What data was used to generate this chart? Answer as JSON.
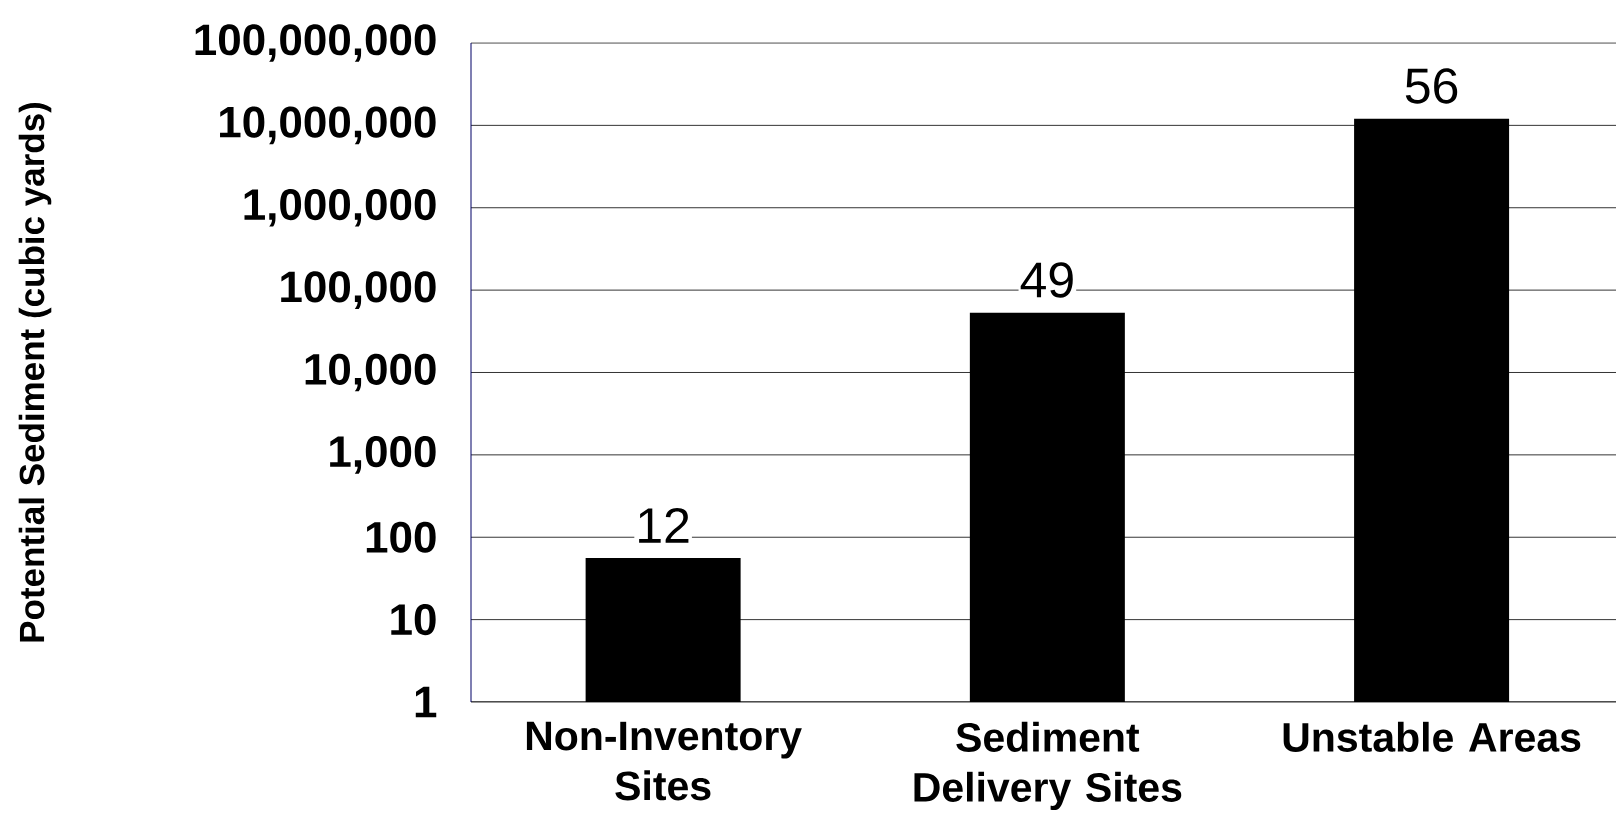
{
  "chart_data": {
    "type": "bar",
    "ylabel": "Potential Sediment (cubic yards)",
    "categories": [
      "Non-Inventory Sites",
      "Sediment Delivery Sites",
      "Unstable Areas"
    ],
    "values": [
      56,
      53000,
      12000000
    ],
    "color": "#000000",
    "annotations": [
      "12",
      "49",
      "56"
    ],
    "log": true,
    "ylim": [
      1,
      100000000
    ],
    "yticks": [
      1,
      10,
      100,
      {
        "value": 1000,
        "label": "1,000"
      },
      {
        "value": 10000,
        "label": "10,000"
      },
      {
        "value": 100000,
        "label": "100,000"
      },
      {
        "value": 1000000,
        "label": "1,000,000"
      },
      {
        "value": 10000000,
        "label": "10,000,000"
      },
      {
        "value": 100000000,
        "label": "100,000,000"
      }
    ],
    "grid": "y"
  }
}
